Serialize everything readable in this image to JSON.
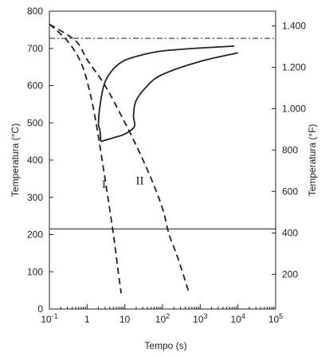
{
  "chart_data": {
    "type": "line",
    "xlabel": "Tempo (s)",
    "ylabel_left": "Temperatura (°C)",
    "ylabel_right": "Temperatura (°F)",
    "x_scale": "log",
    "xlim": [
      0.1,
      100000
    ],
    "ylim": [
      0,
      800
    ],
    "x_ticks": [
      {
        "value": 0.1,
        "base": "10",
        "exp": "-1"
      },
      {
        "value": 1,
        "base": "1",
        "exp": ""
      },
      {
        "value": 10,
        "base": "10",
        "exp": ""
      },
      {
        "value": 100,
        "base": "10",
        "exp": "2"
      },
      {
        "value": 1000,
        "base": "10",
        "exp": "3"
      },
      {
        "value": 10000,
        "base": "10",
        "exp": "4"
      },
      {
        "value": 100000,
        "base": "10",
        "exp": "5"
      }
    ],
    "y_ticks_left": [
      0,
      100,
      200,
      300,
      400,
      500,
      600,
      700,
      800
    ],
    "y_ticks_right": [
      {
        "label": "1.400",
        "celsius": 760
      },
      {
        "label": "1.200",
        "celsius": 649
      },
      {
        "label": "1.000",
        "celsius": 538
      },
      {
        "label": "800",
        "celsius": 427
      },
      {
        "label": "600",
        "celsius": 316
      },
      {
        "label": "400",
        "celsius": 204
      },
      {
        "label": "200",
        "celsius": 93
      }
    ],
    "reference_lines": [
      {
        "y": 727,
        "style": "dash-dot"
      },
      {
        "y": 215,
        "style": "solid"
      }
    ],
    "transformation_curves": [
      {
        "points": [
          [
            2.3,
            450
          ],
          [
            2.2,
            480
          ],
          [
            2.0,
            500
          ],
          [
            2.3,
            560
          ],
          [
            3.0,
            610
          ],
          [
            5.0,
            645
          ],
          [
            10.0,
            668
          ],
          [
            30.0,
            683
          ],
          [
            100.0,
            693
          ],
          [
            1000.0,
            701
          ],
          [
            8000.0,
            706
          ]
        ]
      },
      {
        "points": [
          [
            2.3,
            450
          ],
          [
            5.0,
            460
          ],
          [
            10.0,
            470
          ],
          [
            18.0,
            490
          ],
          [
            17.0,
            520
          ],
          [
            20.0,
            560
          ],
          [
            40.0,
            600
          ],
          [
            100.0,
            630
          ],
          [
            1000.0,
            665
          ],
          [
            10000.0,
            688
          ]
        ]
      }
    ],
    "cooling_curves": [
      {
        "label": "I",
        "label_pos": [
          2.8,
          325
        ],
        "points": [
          [
            0.1,
            765
          ],
          [
            0.3,
            720
          ],
          [
            0.7,
            660
          ],
          [
            1.2,
            580
          ],
          [
            1.8,
            490
          ],
          [
            2.5,
            400
          ],
          [
            3.5,
            305
          ],
          [
            5.0,
            200
          ],
          [
            6.5,
            110
          ],
          [
            8.0,
            42
          ]
        ]
      },
      {
        "label": "II",
        "label_pos": [
          25,
          335
        ],
        "points": [
          [
            0.1,
            765
          ],
          [
            0.5,
            720
          ],
          [
            1.0,
            670
          ],
          [
            3.0,
            600
          ],
          [
            8.0,
            520
          ],
          [
            20.0,
            440
          ],
          [
            50.0,
            350
          ],
          [
            100.0,
            270
          ],
          [
            150.0,
            200
          ],
          [
            250.0,
            140
          ],
          [
            500.0,
            45
          ]
        ]
      }
    ]
  }
}
